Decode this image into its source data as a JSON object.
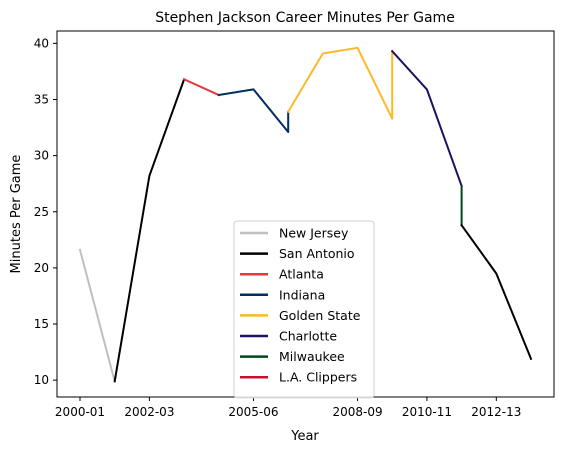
{
  "chart_data": {
    "type": "line",
    "title": "Stephen Jackson Career Minutes Per Game",
    "xlabel": "Year",
    "ylabel": "Minutes Per Game",
    "x_ticks": [
      "2000-01",
      "2002-03",
      "2005-06",
      "2008-09",
      "2010-11",
      "2012-13"
    ],
    "y_ticks": [
      "10",
      "15",
      "20",
      "25",
      "30",
      "35",
      "40"
    ],
    "ylim": [
      8.5,
      41.1
    ],
    "grid": false,
    "legend_position": "lower center",
    "series": [
      {
        "name": "New Jersey",
        "color": "#c0c0c0",
        "points": [
          [
            "2000-01",
            21.6
          ],
          [
            "2001-02",
            9.9
          ]
        ]
      },
      {
        "name": "San Antonio",
        "color": "#000000",
        "points": [
          [
            "2001-02",
            9.9
          ],
          [
            "2002-03",
            28.2
          ],
          [
            "2003-04",
            36.8
          ]
        ]
      },
      {
        "name": "Atlanta",
        "color": "#e03a3e",
        "points": [
          [
            "2003-04",
            36.8
          ],
          [
            "2004-05",
            35.4
          ]
        ]
      },
      {
        "name": "Indiana",
        "color": "#002d62",
        "points": [
          [
            "2004-05",
            35.4
          ],
          [
            "2005-06",
            35.9
          ],
          [
            "2006-07",
            32.1
          ],
          [
            "2006-07",
            33.9
          ]
        ]
      },
      {
        "name": "Golden State",
        "color": "#fdb927",
        "points": [
          [
            "2006-07",
            33.9
          ],
          [
            "2007-08",
            39.1
          ],
          [
            "2008-09",
            39.6
          ],
          [
            "2009-10",
            33.3
          ],
          [
            "2009-10",
            39.3
          ]
        ]
      },
      {
        "name": "Charlotte",
        "color": "#1d1160",
        "points": [
          [
            "2009-10",
            39.3
          ],
          [
            "2010-11",
            35.9
          ],
          [
            "2011-12",
            27.3
          ]
        ]
      },
      {
        "name": "Milwaukee",
        "color": "#00471b",
        "points": [
          [
            "2011-12",
            27.3
          ],
          [
            "2011-12",
            23.8
          ]
        ]
      },
      {
        "name": "L.A. Clippers",
        "color": "#c8102e",
        "points": []
      },
      {
        "name": "San Antonio",
        "color": "#000000",
        "legend": false,
        "points": [
          [
            "2011-12",
            23.8
          ],
          [
            "2012-13",
            19.5
          ],
          [
            "2013-14",
            11.9
          ]
        ]
      }
    ]
  }
}
